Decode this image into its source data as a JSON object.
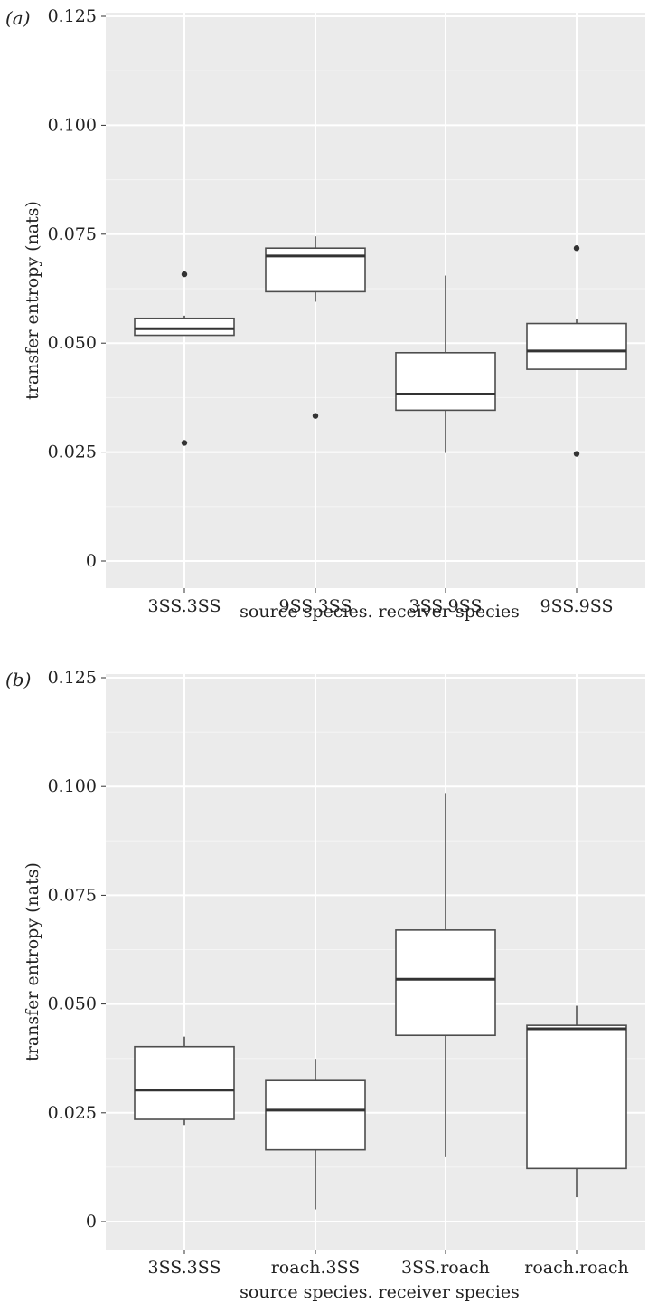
{
  "chart_data": [
    {
      "type": "box",
      "panel_label": "(a)",
      "xlabel": "source species. receiver species",
      "ylabel": "transfer entropy (nats)",
      "ylim": [
        0,
        0.125
      ],
      "y_ticks": [
        0,
        0.025,
        0.05,
        0.075,
        0.1,
        0.125
      ],
      "y_tick_labels": [
        "0",
        "0.025",
        "0.050",
        "0.075",
        "0.100",
        "0.125"
      ],
      "categories": [
        "3SS.3SS",
        "9SS.3SS",
        "3SS.9SS",
        "9SS.9SS"
      ],
      "boxes": [
        {
          "category": "3SS.3SS",
          "whisker_low": 0.0518,
          "q1": 0.0518,
          "median": 0.0533,
          "q3": 0.0557,
          "whisker_high": 0.0563,
          "outliers": [
            0.0658,
            0.0271
          ]
        },
        {
          "category": "9SS.3SS",
          "whisker_low": 0.0595,
          "q1": 0.0618,
          "median": 0.07,
          "q3": 0.0718,
          "whisker_high": 0.0745,
          "outliers": [
            0.0333
          ]
        },
        {
          "category": "3SS.9SS",
          "whisker_low": 0.0248,
          "q1": 0.0346,
          "median": 0.0383,
          "q3": 0.0478,
          "whisker_high": 0.0655,
          "outliers": []
        },
        {
          "category": "9SS.9SS",
          "whisker_low": 0.044,
          "q1": 0.044,
          "median": 0.0482,
          "q3": 0.0545,
          "whisker_high": 0.0555,
          "outliers": [
            0.0718,
            0.0246
          ]
        }
      ],
      "grid": true,
      "background": "#ebebeb",
      "box_fill": "#ffffff",
      "line_color": "#4d4d4d"
    },
    {
      "type": "box",
      "panel_label": "(b)",
      "xlabel": "source species. receiver species",
      "ylabel": "transfer entropy (nats)",
      "ylim": [
        0,
        0.125
      ],
      "y_ticks": [
        0,
        0.025,
        0.05,
        0.075,
        0.1,
        0.125
      ],
      "y_tick_labels": [
        "0",
        "0.025",
        "0.050",
        "0.075",
        "0.100",
        "0.125"
      ],
      "categories": [
        "3SS.3SS",
        "roach.3SS",
        "3SS.roach",
        "roach.roach"
      ],
      "boxes": [
        {
          "category": "3SS.3SS",
          "whisker_low": 0.0222,
          "q1": 0.0235,
          "median": 0.0302,
          "q3": 0.0402,
          "whisker_high": 0.0425,
          "outliers": []
        },
        {
          "category": "roach.3SS",
          "whisker_low": 0.0028,
          "q1": 0.0165,
          "median": 0.0256,
          "q3": 0.0324,
          "whisker_high": 0.0374,
          "outliers": []
        },
        {
          "category": "3SS.roach",
          "whisker_low": 0.0148,
          "q1": 0.0428,
          "median": 0.0557,
          "q3": 0.067,
          "whisker_high": 0.0985,
          "outliers": []
        },
        {
          "category": "roach.roach",
          "whisker_low": 0.0056,
          "q1": 0.0122,
          "median": 0.0443,
          "q3": 0.0451,
          "whisker_high": 0.0496,
          "outliers": []
        }
      ],
      "grid": true,
      "background": "#ebebeb",
      "box_fill": "#ffffff",
      "line_color": "#4d4d4d"
    }
  ]
}
